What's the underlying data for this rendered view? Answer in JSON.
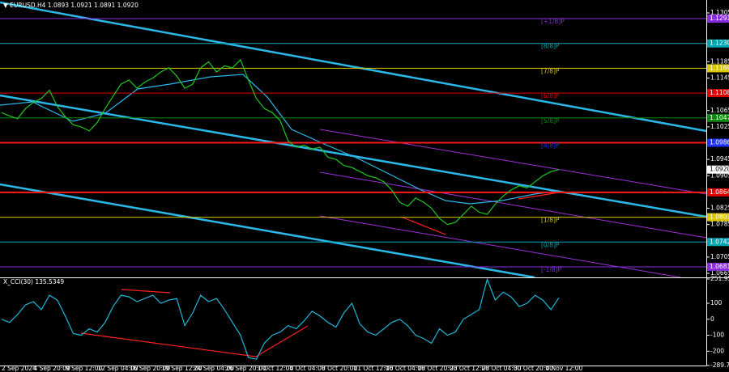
{
  "chart_data": [
    {
      "type": "line",
      "title": "▼ EURUSD,H4 1.0893 1.0921 1.0891 1.0920",
      "color": "#1ec81e",
      "values": [
        1.106,
        1.1052,
        1.1045,
        1.107,
        1.1085,
        1.1095,
        1.1115,
        1.1075,
        1.105,
        1.103,
        1.1025,
        1.1015,
        1.1035,
        1.107,
        1.11,
        1.113,
        1.114,
        1.112,
        1.1135,
        1.1145,
        1.116,
        1.117,
        1.115,
        1.112,
        1.113,
        1.117,
        1.1185,
        1.116,
        1.1175,
        1.117,
        1.119,
        1.114,
        1.1095,
        1.107,
        1.106,
        1.104,
        1.099,
        1.0975,
        1.098,
        1.097,
        1.0975,
        1.095,
        1.0945,
        1.093,
        1.0925,
        1.0915,
        1.0905,
        1.09,
        1.089,
        1.087,
        1.084,
        1.083,
        1.085,
        1.084,
        1.0825,
        1.08,
        1.0785,
        1.079,
        1.081,
        1.083,
        1.0815,
        1.081,
        1.0835,
        1.0855,
        1.087,
        1.088,
        1.0875,
        1.089,
        1.0905,
        1.0915,
        1.092
      ],
      "ylim": [
        1.0665,
        1.1305
      ],
      "yticks": [
        1.1305,
        1.1185,
        1.1145,
        1.1065,
        1.1025,
        1.0945,
        1.0905,
        1.0825,
        1.0785,
        1.0705,
        1.0665
      ],
      "last_price": {
        "value": 1.092,
        "label": "1.0920"
      },
      "levels": [
        {
          "value": 1.1291,
          "label": "1.1291",
          "name": "[+1/8]P",
          "color": "#8a2be2",
          "line_color": "#8a2be2"
        },
        {
          "value": 1.123,
          "label": "1.1230",
          "name": "[8/8]P",
          "color": "#00a5b5",
          "line_color": "#00a5b5"
        },
        {
          "value": 1.1169,
          "label": "1.1169",
          "name": "[7/8]P",
          "color": "#d8c800",
          "line_color": "#d8c800"
        },
        {
          "value": 1.1108,
          "label": "1.1108",
          "name": "[6/8]P",
          "color": "#e00000",
          "line_color": "#e00000"
        },
        {
          "value": 1.1047,
          "label": "1.1047",
          "name": "[5/8]P",
          "color": "#0a8a0a",
          "line_color": "#0a8a0a"
        },
        {
          "value": 1.0986,
          "label": "1.0986",
          "name": "[4/8]P",
          "color": "#1e32ff",
          "line_color": "#ff1a1a"
        },
        {
          "value": 1.0864,
          "label": "1.0864",
          "color": "#e00000",
          "line_color": "#ff1a1a"
        },
        {
          "value": 1.0803,
          "label": "1.0803",
          "name": "[1/8]P",
          "color": "#d8c800",
          "line_color": "#d8c800"
        },
        {
          "value": 1.0742,
          "label": "1.0742",
          "name": "[0/8]P",
          "color": "#00a5b5",
          "line_color": "#00a5b5"
        },
        {
          "value": 1.0681,
          "label": "1.0681",
          "name": "[-1/8]P",
          "color": "#8a2be2",
          "line_color": "#8a2be2"
        }
      ],
      "x_labels": [
        "2 Sep 2024",
        "4 Sep 20:00",
        "9 Sep 12:00",
        "12 Sep 04:00",
        "16 Sep 20:00",
        "19 Sep 12:00",
        "24 Sep 04:00",
        "26 Sep 20:00",
        "1 Oct 12:00",
        "4 Oct 04:00",
        "8 Oct 20:00",
        "11 Oct 12:00",
        "16 Oct 04:00",
        "18 Oct 20:00",
        "23 Oct 12:00",
        "28 Oct 04:00",
        "30 Oct 20:00",
        "4 Nov 12:00"
      ]
    },
    {
      "type": "line",
      "title": "X_CCI(30) 135.5349",
      "color": "#1fb6d6",
      "values": [
        0,
        -20,
        30,
        90,
        110,
        60,
        150,
        120,
        20,
        -90,
        -100,
        -60,
        -80,
        -20,
        80,
        150,
        140,
        110,
        130,
        150,
        100,
        120,
        130,
        -40,
        40,
        150,
        110,
        130,
        60,
        -20,
        -100,
        -240,
        -250,
        -150,
        -100,
        -80,
        -40,
        -60,
        -10,
        50,
        20,
        -20,
        -50,
        40,
        100,
        -30,
        -80,
        -100,
        -60,
        -20,
        0,
        -40,
        -100,
        -120,
        -150,
        -60,
        -100,
        -80,
        0,
        30,
        60,
        250,
        120,
        170,
        140,
        80,
        100,
        150,
        120,
        60,
        135
      ],
      "ylim": [
        -289.734,
        251.9533
      ],
      "yticks": [
        251.9533,
        100,
        0,
        -100,
        -200,
        -289.734
      ]
    }
  ]
}
